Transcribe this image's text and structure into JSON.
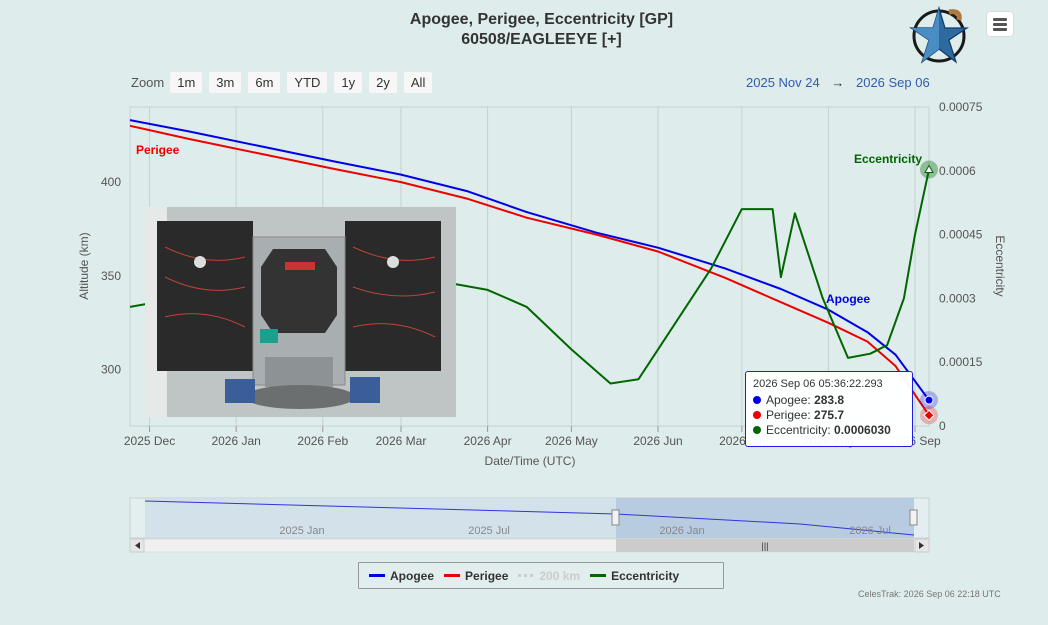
{
  "header": {
    "title_line1": "Apogee, Perigee, Eccentricity [GP]",
    "title_line2": "60508/EAGLEEYE [+]"
  },
  "zoom": {
    "label": "Zoom",
    "buttons": [
      "1m",
      "3m",
      "6m",
      "YTD",
      "1y",
      "2y",
      "All"
    ]
  },
  "range": {
    "from": "2025 Nov 24",
    "arrow": "→",
    "to": "2026 Sep 06"
  },
  "tooltip": {
    "date": "2026 Sep 06 05:36:22.293",
    "apogee_label": "Apogee:",
    "apogee_value": "283.8",
    "perigee_label": "Perigee:",
    "perigee_value": "275.7",
    "ecc_label": "Eccentricity:",
    "ecc_value": "0.0006030"
  },
  "navigator": {
    "labels": [
      "2025 Jan",
      "2025 Jul",
      "2026 Jan",
      "2026 Jul"
    ]
  },
  "legend": {
    "apogee": "Apogee",
    "perigee": "Perigee",
    "hidden": "200 km",
    "eccentricity": "Eccentricity"
  },
  "credits": "CelesTrak: 2026 Sep 06 22:18 UTC",
  "colors": {
    "apogee": "#0000e6",
    "perigee": "#ee0000",
    "eccentricity": "#006600",
    "background": "#deeceb"
  },
  "chart_data": {
    "type": "line",
    "xlabel": "Date/Time (UTC)",
    "ylabel": "Altitude (km)",
    "y2label": "Eccentricity",
    "ylim": [
      270,
      440
    ],
    "y2lim": [
      0,
      0.00075
    ],
    "xlim": [
      "2025-11-24",
      "2026-09-06"
    ],
    "x_ticks": [
      "2025 Dec",
      "2026 Jan",
      "2026 Feb",
      "2026 Mar",
      "2026 Apr",
      "2026 May",
      "2026 Jun",
      "2026 Jul",
      "2026 Aug",
      "2026 Sep"
    ],
    "y_ticks": [
      "300",
      "350",
      "400"
    ],
    "y2_ticks": [
      "0",
      "0.00015",
      "0.0003",
      "0.00045",
      "0.0006",
      "0.00075"
    ],
    "series": [
      {
        "name": "Apogee",
        "x": [
          "2025-11-24",
          "2025-12-15",
          "2026-01-10",
          "2026-02-05",
          "2026-03-01",
          "2026-03-25",
          "2026-04-15",
          "2026-05-10",
          "2026-06-01",
          "2026-06-25",
          "2026-07-15",
          "2026-08-01",
          "2026-08-15",
          "2026-08-25",
          "2026-09-06"
        ],
        "values": [
          433,
          427,
          419,
          411,
          404,
          395,
          384,
          373,
          365,
          354,
          343,
          332,
          320,
          308,
          283.8
        ]
      },
      {
        "name": "Perigee",
        "x": [
          "2025-11-24",
          "2025-12-15",
          "2026-01-10",
          "2026-02-05",
          "2026-03-01",
          "2026-03-25",
          "2026-04-15",
          "2026-05-10",
          "2026-06-01",
          "2026-06-25",
          "2026-07-15",
          "2026-08-01",
          "2026-08-15",
          "2026-08-25",
          "2026-09-06"
        ],
        "values": [
          430,
          423,
          415,
          407,
          400,
          391,
          381,
          372,
          363,
          349,
          336,
          325,
          315,
          302,
          275.7
        ]
      },
      {
        "name": "Eccentricity",
        "x": [
          "2025-11-24",
          "2025-12-20",
          "2026-01-15",
          "2026-02-15",
          "2026-03-15",
          "2026-04-01",
          "2026-04-15",
          "2026-05-01",
          "2026-05-15",
          "2026-05-25",
          "2026-06-05",
          "2026-06-20",
          "2026-07-01",
          "2026-07-12",
          "2026-07-15",
          "2026-07-20",
          "2026-07-30",
          "2026-08-08",
          "2026-08-16",
          "2026-08-22",
          "2026-08-28",
          "2026-09-01",
          "2026-09-06"
        ],
        "values": [
          0.00028,
          0.00031,
          0.00033,
          0.00034,
          0.00034,
          0.00032,
          0.00028,
          0.00018,
          0.0001,
          0.00011,
          0.00022,
          0.00037,
          0.00051,
          0.00051,
          0.00035,
          0.0005,
          0.0003,
          0.00016,
          0.00017,
          0.00019,
          0.0003,
          0.00045,
          0.000603
        ]
      }
    ],
    "series_labels": [
      "Perigee",
      "Apogee",
      "Eccentricity"
    ]
  }
}
